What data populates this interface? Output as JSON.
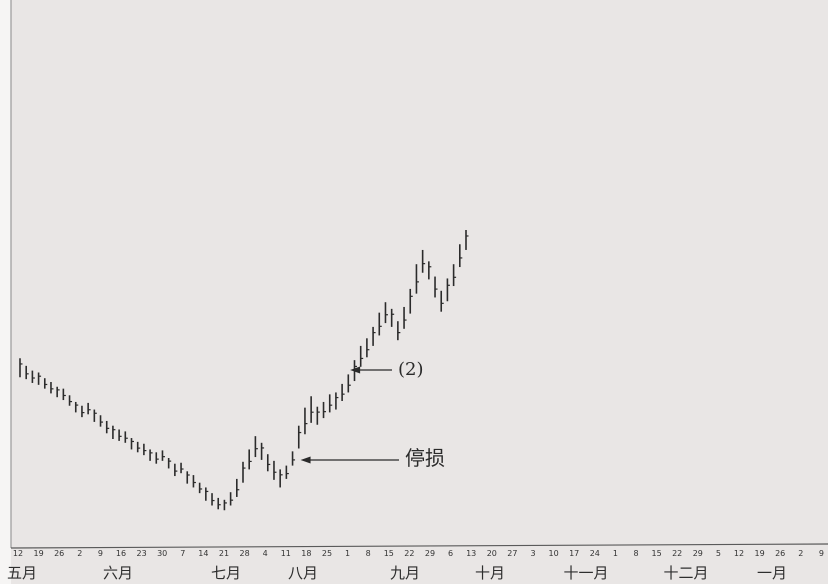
{
  "chart_data": {
    "type": "bar",
    "subtype": "daily price bar chart (high-low bars)",
    "grid": false,
    "legend": "none",
    "day_ticks": [
      "12",
      "19",
      "26",
      "2",
      "9",
      "16",
      "23",
      "30",
      "7",
      "14",
      "21",
      "28",
      "4",
      "11",
      "18",
      "25",
      "1",
      "8",
      "15",
      "22",
      "29",
      "6",
      "13",
      "20",
      "27",
      "3",
      "10",
      "17",
      "24",
      "1",
      "8",
      "15",
      "22",
      "29",
      "5",
      "12",
      "19",
      "26",
      "2",
      "9"
    ],
    "months": [
      "五月",
      "六月",
      "七月",
      "八月",
      "九月",
      "十月",
      "十一月",
      "十二月",
      "一月"
    ],
    "bars": [
      {
        "high": 66.5,
        "low": 64.5
      },
      {
        "high": 65.7,
        "low": 64.3
      },
      {
        "high": 65.2,
        "low": 63.9
      },
      {
        "high": 65.0,
        "low": 63.7
      },
      {
        "high": 64.4,
        "low": 63.3
      },
      {
        "high": 64.0,
        "low": 62.8
      },
      {
        "high": 63.5,
        "low": 62.4
      },
      {
        "high": 63.3,
        "low": 62.1
      },
      {
        "high": 62.6,
        "low": 61.5
      },
      {
        "high": 61.9,
        "low": 60.8
      },
      {
        "high": 61.5,
        "low": 60.3
      },
      {
        "high": 61.8,
        "low": 60.6
      },
      {
        "high": 61.1,
        "low": 59.8
      },
      {
        "high": 60.5,
        "low": 59.3
      },
      {
        "high": 59.9,
        "low": 58.6
      },
      {
        "high": 59.4,
        "low": 58.0
      },
      {
        "high": 59.0,
        "low": 57.8
      },
      {
        "high": 58.8,
        "low": 57.6
      },
      {
        "high": 58.1,
        "low": 56.9
      },
      {
        "high": 57.7,
        "low": 56.6
      },
      {
        "high": 57.5,
        "low": 56.3
      },
      {
        "high": 56.9,
        "low": 55.7
      },
      {
        "high": 56.6,
        "low": 55.4
      },
      {
        "high": 56.8,
        "low": 55.7
      },
      {
        "high": 56.0,
        "low": 54.9
      },
      {
        "high": 55.4,
        "low": 54.1
      },
      {
        "high": 55.5,
        "low": 54.4
      },
      {
        "high": 54.6,
        "low": 53.3
      },
      {
        "high": 54.2,
        "low": 52.9
      },
      {
        "high": 53.4,
        "low": 52.3
      },
      {
        "high": 52.9,
        "low": 51.5
      },
      {
        "high": 52.3,
        "low": 51.0
      },
      {
        "high": 51.8,
        "low": 50.6
      },
      {
        "high": 51.6,
        "low": 50.5
      },
      {
        "high": 52.4,
        "low": 51.0
      },
      {
        "high": 53.8,
        "low": 51.9
      },
      {
        "high": 55.6,
        "low": 53.4
      },
      {
        "high": 56.9,
        "low": 54.8
      },
      {
        "high": 58.3,
        "low": 56.1
      },
      {
        "high": 57.6,
        "low": 55.8
      },
      {
        "high": 56.4,
        "low": 54.6
      },
      {
        "high": 55.7,
        "low": 53.7
      },
      {
        "high": 54.8,
        "low": 52.9
      },
      {
        "high": 55.2,
        "low": 53.8
      },
      {
        "high": 56.7,
        "low": 55.2
      },
      {
        "high": 59.4,
        "low": 57.0
      },
      {
        "high": 61.3,
        "low": 58.5
      },
      {
        "high": 62.5,
        "low": 59.7
      },
      {
        "high": 61.4,
        "low": 59.5
      },
      {
        "high": 61.9,
        "low": 60.2
      },
      {
        "high": 62.7,
        "low": 60.8
      },
      {
        "high": 62.9,
        "low": 61.1
      },
      {
        "high": 63.8,
        "low": 62.0
      },
      {
        "high": 64.8,
        "low": 62.9
      },
      {
        "high": 66.3,
        "low": 64.1
      },
      {
        "high": 67.8,
        "low": 65.6
      },
      {
        "high": 68.6,
        "low": 66.6
      },
      {
        "high": 69.8,
        "low": 67.8
      },
      {
        "high": 71.3,
        "low": 68.9
      },
      {
        "high": 72.4,
        "low": 70.2
      },
      {
        "high": 71.7,
        "low": 69.8
      },
      {
        "high": 70.4,
        "low": 68.4
      },
      {
        "high": 71.9,
        "low": 69.6
      },
      {
        "high": 73.8,
        "low": 71.2
      },
      {
        "high": 76.4,
        "low": 73.3
      },
      {
        "high": 77.9,
        "low": 75.5
      },
      {
        "high": 76.7,
        "low": 74.8
      },
      {
        "high": 75.1,
        "low": 72.9
      },
      {
        "high": 73.6,
        "low": 71.4
      },
      {
        "high": 74.9,
        "low": 72.5
      },
      {
        "high": 76.4,
        "low": 74.1
      },
      {
        "high": 78.5,
        "low": 76.1
      },
      {
        "high": 80.0,
        "low": 77.9
      }
    ],
    "annotations": [
      {
        "text": "(2)",
        "bar_index": 52
      },
      {
        "text": "停损",
        "bar_index": 44
      }
    ]
  }
}
